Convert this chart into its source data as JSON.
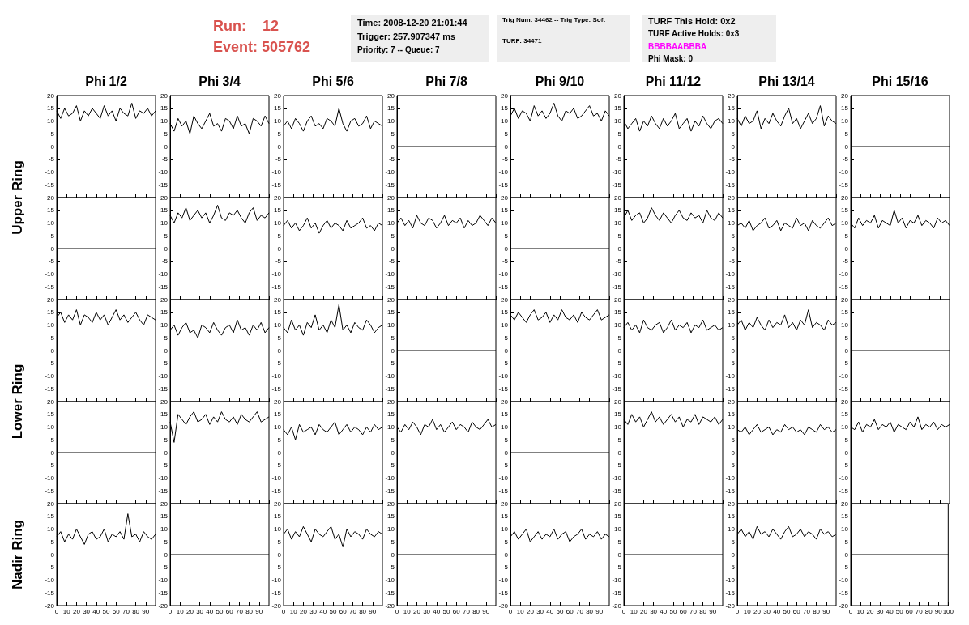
{
  "chart_data": [
    {
      "type": "line",
      "title": "Phi 1/2",
      "ylabel": "Upper Ring",
      "annotations": [
        "Run:    12",
        "Event: 505762",
        "Time: 2008-12-20 21:01:44",
        "Trigger: 257.907347 ms",
        "Priority: 7 -- Queue: 7",
        "Trig Num: 34462 -- Trig Type: Soft",
        "TURF: 34471",
        "TURF This Hold: 0x2",
        "TURF Active Holds: 0x3",
        "BBBBAABBBA",
        "Phi Mask: 0"
      ],
      "color": "#000000",
      "marker": "none",
      "tick_labels": "y",
      "xlim": [
        0,
        100
      ],
      "ylim": [
        -20,
        20
      ],
      "xticks": [
        0,
        10,
        20,
        30,
        40,
        50,
        60,
        70,
        80,
        90,
        100
      ],
      "yticks": [
        -15,
        -10,
        -5,
        0,
        5,
        10,
        15,
        20
      ],
      "x": [
        0,
        4,
        8,
        12,
        16,
        20,
        24,
        28,
        32,
        36,
        40,
        44,
        48,
        52,
        56,
        60,
        64,
        68,
        72,
        76,
        80,
        84,
        88,
        92,
        96,
        100
      ],
      "values": [
        14,
        11,
        15,
        12,
        13,
        16,
        10,
        14,
        12,
        15,
        13,
        11,
        16,
        12,
        14,
        10,
        15,
        13,
        12,
        17,
        11,
        14,
        13,
        15,
        12,
        14
      ]
    },
    {
      "type": "line",
      "title": "Phi 3/4",
      "color": "#000000",
      "marker": "none",
      "tick_labels": "y",
      "xlim": [
        0,
        100
      ],
      "ylim": [
        -20,
        20
      ],
      "xticks": [
        0,
        10,
        20,
        30,
        40,
        50,
        60,
        70,
        80,
        90,
        100
      ],
      "yticks": [
        -15,
        -10,
        -5,
        0,
        5,
        10,
        15,
        20
      ],
      "x": [
        0,
        4,
        8,
        12,
        16,
        20,
        24,
        28,
        32,
        36,
        40,
        44,
        48,
        52,
        56,
        60,
        64,
        68,
        72,
        76,
        80,
        84,
        88,
        92,
        96,
        100
      ],
      "values": [
        9,
        6,
        11,
        8,
        10,
        5,
        12,
        9,
        7,
        10,
        13,
        8,
        9,
        6,
        11,
        10,
        7,
        12,
        8,
        9,
        5,
        11,
        10,
        8,
        12,
        9
      ]
    },
    {
      "type": "line",
      "title": "Phi 5/6",
      "color": "#000000",
      "marker": "none",
      "tick_labels": "y",
      "xlim": [
        0,
        100
      ],
      "ylim": [
        -20,
        20
      ],
      "xticks": [
        0,
        10,
        20,
        30,
        40,
        50,
        60,
        70,
        80,
        90,
        100
      ],
      "yticks": [
        -15,
        -10,
        -5,
        0,
        5,
        10,
        15,
        20
      ],
      "x": [
        0,
        4,
        8,
        12,
        16,
        20,
        24,
        28,
        32,
        36,
        40,
        44,
        48,
        52,
        56,
        60,
        64,
        68,
        72,
        76,
        80,
        84,
        88,
        92,
        96,
        100
      ],
      "values": [
        8,
        10,
        7,
        11,
        9,
        6,
        10,
        12,
        8,
        9,
        7,
        11,
        10,
        8,
        15,
        9,
        6,
        10,
        11,
        8,
        9,
        12,
        7,
        10,
        9,
        8
      ]
    },
    {
      "type": "line",
      "title": "Phi 7/8",
      "color": "#000000",
      "marker": "none",
      "tick_labels": "y",
      "xlim": [
        0,
        100
      ],
      "ylim": [
        -20,
        20
      ],
      "xticks": [
        0,
        10,
        20,
        30,
        40,
        50,
        60,
        70,
        80,
        90,
        100
      ],
      "yticks": [
        -15,
        -10,
        -5,
        0,
        5,
        10,
        15,
        20
      ],
      "x": [
        0,
        100
      ],
      "values": [
        0,
        0
      ]
    },
    {
      "type": "line",
      "title": "Phi 9/10",
      "color": "#000000",
      "marker": "none",
      "tick_labels": "y",
      "xlim": [
        0,
        100
      ],
      "ylim": [
        -20,
        20
      ],
      "xticks": [
        0,
        10,
        20,
        30,
        40,
        50,
        60,
        70,
        80,
        90,
        100
      ],
      "yticks": [
        -15,
        -10,
        -5,
        0,
        5,
        10,
        15,
        20
      ],
      "x": [
        0,
        4,
        8,
        12,
        16,
        20,
        24,
        28,
        32,
        36,
        40,
        44,
        48,
        52,
        56,
        60,
        64,
        68,
        72,
        76,
        80,
        84,
        88,
        92,
        96,
        100
      ],
      "values": [
        12,
        15,
        11,
        14,
        13,
        10,
        16,
        12,
        14,
        11,
        13,
        17,
        12,
        10,
        14,
        13,
        15,
        11,
        12,
        14,
        16,
        12,
        13,
        10,
        14,
        12
      ]
    },
    {
      "type": "line",
      "title": "Phi 11/12",
      "color": "#000000",
      "marker": "none",
      "tick_labels": "y",
      "xlim": [
        0,
        100
      ],
      "ylim": [
        -20,
        20
      ],
      "xticks": [
        0,
        10,
        20,
        30,
        40,
        50,
        60,
        70,
        80,
        90,
        100
      ],
      "yticks": [
        -15,
        -10,
        -5,
        0,
        5,
        10,
        15,
        20
      ],
      "x": [
        0,
        4,
        8,
        12,
        16,
        20,
        24,
        28,
        32,
        36,
        40,
        44,
        48,
        52,
        56,
        60,
        64,
        68,
        72,
        76,
        80,
        84,
        88,
        92,
        96,
        100
      ],
      "values": [
        10,
        7,
        9,
        11,
        6,
        10,
        8,
        12,
        9,
        7,
        11,
        8,
        10,
        13,
        7,
        9,
        11,
        6,
        10,
        8,
        12,
        9,
        7,
        10,
        11,
        9
      ]
    },
    {
      "type": "line",
      "title": "Phi 13/14",
      "color": "#000000",
      "marker": "none",
      "tick_labels": "y",
      "xlim": [
        0,
        100
      ],
      "ylim": [
        -20,
        20
      ],
      "xticks": [
        0,
        10,
        20,
        30,
        40,
        50,
        60,
        70,
        80,
        90,
        100
      ],
      "yticks": [
        -15,
        -10,
        -5,
        0,
        5,
        10,
        15,
        20
      ],
      "x": [
        0,
        4,
        8,
        12,
        16,
        20,
        24,
        28,
        32,
        36,
        40,
        44,
        48,
        52,
        56,
        60,
        64,
        68,
        72,
        76,
        80,
        84,
        88,
        92,
        96,
        100
      ],
      "values": [
        11,
        8,
        12,
        9,
        10,
        14,
        7,
        11,
        9,
        13,
        10,
        8,
        12,
        15,
        9,
        11,
        7,
        10,
        13,
        9,
        11,
        16,
        8,
        12,
        10,
        9
      ]
    },
    {
      "type": "line",
      "title": "Phi 15/16",
      "color": "#000000",
      "marker": "none",
      "tick_labels": "y",
      "xlim": [
        0,
        100
      ],
      "ylim": [
        -20,
        20
      ],
      "xticks": [
        0,
        10,
        20,
        30,
        40,
        50,
        60,
        70,
        80,
        90,
        100
      ],
      "yticks": [
        -15,
        -10,
        -5,
        0,
        5,
        10,
        15,
        20
      ],
      "x": [
        0,
        100
      ],
      "values": [
        0,
        0
      ]
    },
    {
      "type": "line",
      "color": "#000000",
      "marker": "none",
      "tick_labels": "y",
      "xlim": [
        0,
        100
      ],
      "ylim": [
        -20,
        20
      ],
      "xticks": [
        0,
        10,
        20,
        30,
        40,
        50,
        60,
        70,
        80,
        90,
        100
      ],
      "yticks": [
        -15,
        -10,
        -5,
        0,
        5,
        10,
        15,
        20
      ],
      "x": [
        0,
        100
      ],
      "values": [
        0,
        0
      ]
    },
    {
      "type": "line",
      "color": "#000000",
      "marker": "none",
      "tick_labels": "y",
      "xlim": [
        0,
        100
      ],
      "ylim": [
        -20,
        20
      ],
      "xticks": [
        0,
        10,
        20,
        30,
        40,
        50,
        60,
        70,
        80,
        90,
        100
      ],
      "yticks": [
        -15,
        -10,
        -5,
        0,
        5,
        10,
        15,
        20
      ],
      "x": [
        0,
        4,
        8,
        12,
        16,
        20,
        24,
        28,
        32,
        36,
        40,
        44,
        48,
        52,
        56,
        60,
        64,
        68,
        72,
        76,
        80,
        84,
        88,
        92,
        96,
        100
      ],
      "values": [
        13,
        10,
        14,
        12,
        16,
        11,
        13,
        15,
        12,
        14,
        10,
        13,
        17,
        12,
        11,
        14,
        13,
        15,
        12,
        10,
        14,
        16,
        11,
        13,
        12,
        14
      ]
    },
    {
      "type": "line",
      "color": "#000000",
      "marker": "none",
      "tick_labels": "y",
      "xlim": [
        0,
        100
      ],
      "ylim": [
        -20,
        20
      ],
      "xticks": [
        0,
        10,
        20,
        30,
        40,
        50,
        60,
        70,
        80,
        90,
        100
      ],
      "yticks": [
        -15,
        -10,
        -5,
        0,
        5,
        10,
        15,
        20
      ],
      "x": [
        0,
        4,
        8,
        12,
        16,
        20,
        24,
        28,
        32,
        36,
        40,
        44,
        48,
        52,
        56,
        60,
        64,
        68,
        72,
        76,
        80,
        84,
        88,
        92,
        96,
        100
      ],
      "values": [
        9,
        11,
        8,
        10,
        7,
        9,
        12,
        8,
        10,
        6,
        9,
        11,
        8,
        10,
        9,
        7,
        11,
        8,
        9,
        10,
        12,
        8,
        9,
        7,
        10,
        9
      ]
    },
    {
      "type": "line",
      "color": "#000000",
      "marker": "none",
      "tick_labels": "y",
      "xlim": [
        0,
        100
      ],
      "ylim": [
        -20,
        20
      ],
      "xticks": [
        0,
        10,
        20,
        30,
        40,
        50,
        60,
        70,
        80,
        90,
        100
      ],
      "yticks": [
        -15,
        -10,
        -5,
        0,
        5,
        10,
        15,
        20
      ],
      "x": [
        0,
        4,
        8,
        12,
        16,
        20,
        24,
        28,
        32,
        36,
        40,
        44,
        48,
        52,
        56,
        60,
        64,
        68,
        72,
        76,
        80,
        84,
        88,
        92,
        96,
        100
      ],
      "values": [
        10,
        12,
        9,
        11,
        8,
        13,
        10,
        9,
        12,
        11,
        8,
        10,
        13,
        9,
        11,
        10,
        12,
        8,
        11,
        9,
        10,
        13,
        11,
        9,
        12,
        10
      ]
    },
    {
      "type": "line",
      "color": "#000000",
      "marker": "none",
      "tick_labels": "y",
      "xlim": [
        0,
        100
      ],
      "ylim": [
        -20,
        20
      ],
      "xticks": [
        0,
        10,
        20,
        30,
        40,
        50,
        60,
        70,
        80,
        90,
        100
      ],
      "yticks": [
        -15,
        -10,
        -5,
        0,
        5,
        10,
        15,
        20
      ],
      "x": [
        0,
        100
      ],
      "values": [
        0,
        0
      ]
    },
    {
      "type": "line",
      "color": "#000000",
      "marker": "none",
      "tick_labels": "y",
      "xlim": [
        0,
        100
      ],
      "ylim": [
        -20,
        20
      ],
      "xticks": [
        0,
        10,
        20,
        30,
        40,
        50,
        60,
        70,
        80,
        90,
        100
      ],
      "yticks": [
        -15,
        -10,
        -5,
        0,
        5,
        10,
        15,
        20
      ],
      "x": [
        0,
        4,
        8,
        12,
        16,
        20,
        24,
        28,
        32,
        36,
        40,
        44,
        48,
        52,
        56,
        60,
        64,
        68,
        72,
        76,
        80,
        84,
        88,
        92,
        96,
        100
      ],
      "values": [
        12,
        15,
        11,
        13,
        14,
        10,
        12,
        16,
        13,
        11,
        14,
        12,
        10,
        13,
        15,
        12,
        11,
        14,
        12,
        13,
        10,
        15,
        12,
        11,
        14,
        12
      ]
    },
    {
      "type": "line",
      "color": "#000000",
      "marker": "none",
      "tick_labels": "y",
      "xlim": [
        0,
        100
      ],
      "ylim": [
        -20,
        20
      ],
      "xticks": [
        0,
        10,
        20,
        30,
        40,
        50,
        60,
        70,
        80,
        90,
        100
      ],
      "yticks": [
        -15,
        -10,
        -5,
        0,
        5,
        10,
        15,
        20
      ],
      "x": [
        0,
        4,
        8,
        12,
        16,
        20,
        24,
        28,
        32,
        36,
        40,
        44,
        48,
        52,
        56,
        60,
        64,
        68,
        72,
        76,
        80,
        84,
        88,
        92,
        96,
        100
      ],
      "values": [
        9,
        10,
        8,
        11,
        7,
        9,
        10,
        12,
        8,
        9,
        11,
        7,
        10,
        9,
        8,
        12,
        9,
        10,
        7,
        11,
        9,
        8,
        10,
        12,
        9,
        10
      ]
    },
    {
      "type": "line",
      "color": "#000000",
      "marker": "none",
      "tick_labels": "y",
      "xlim": [
        0,
        100
      ],
      "ylim": [
        -20,
        20
      ],
      "xticks": [
        0,
        10,
        20,
        30,
        40,
        50,
        60,
        70,
        80,
        90,
        100
      ],
      "yticks": [
        -15,
        -10,
        -5,
        0,
        5,
        10,
        15,
        20
      ],
      "x": [
        0,
        4,
        8,
        12,
        16,
        20,
        24,
        28,
        32,
        36,
        40,
        44,
        48,
        52,
        56,
        60,
        64,
        68,
        72,
        76,
        80,
        84,
        88,
        92,
        96,
        100
      ],
      "values": [
        10,
        8,
        12,
        9,
        11,
        10,
        13,
        8,
        11,
        10,
        9,
        15,
        10,
        12,
        8,
        11,
        10,
        13,
        9,
        11,
        10,
        8,
        12,
        10,
        11,
        9
      ]
    },
    {
      "type": "line",
      "ylabel": "Lower Ring",
      "color": "#000000",
      "marker": "none",
      "tick_labels": "y",
      "xlim": [
        0,
        100
      ],
      "ylim": [
        -20,
        20
      ],
      "xticks": [
        0,
        10,
        20,
        30,
        40,
        50,
        60,
        70,
        80,
        90,
        100
      ],
      "yticks": [
        -15,
        -10,
        -5,
        0,
        5,
        10,
        15,
        20
      ],
      "x": [
        0,
        4,
        8,
        12,
        16,
        20,
        24,
        28,
        32,
        36,
        40,
        44,
        48,
        52,
        56,
        60,
        64,
        68,
        72,
        76,
        80,
        84,
        88,
        92,
        96,
        100
      ],
      "values": [
        13,
        15,
        11,
        14,
        12,
        16,
        10,
        14,
        13,
        11,
        15,
        12,
        14,
        10,
        13,
        16,
        12,
        14,
        11,
        13,
        15,
        12,
        10,
        14,
        13,
        12
      ]
    },
    {
      "type": "line",
      "color": "#000000",
      "marker": "none",
      "tick_labels": "y",
      "xlim": [
        0,
        100
      ],
      "ylim": [
        -20,
        20
      ],
      "xticks": [
        0,
        10,
        20,
        30,
        40,
        50,
        60,
        70,
        80,
        90,
        100
      ],
      "yticks": [
        -15,
        -10,
        -5,
        0,
        5,
        10,
        15,
        20
      ],
      "x": [
        0,
        4,
        8,
        12,
        16,
        20,
        24,
        28,
        32,
        36,
        40,
        44,
        48,
        52,
        56,
        60,
        64,
        68,
        72,
        76,
        80,
        84,
        88,
        92,
        96,
        100
      ],
      "values": [
        8,
        10,
        6,
        9,
        11,
        7,
        8,
        5,
        10,
        9,
        7,
        11,
        8,
        6,
        9,
        10,
        7,
        12,
        8,
        9,
        6,
        10,
        8,
        11,
        7,
        9
      ]
    },
    {
      "type": "line",
      "color": "#000000",
      "marker": "none",
      "tick_labels": "y",
      "xlim": [
        0,
        100
      ],
      "ylim": [
        -20,
        20
      ],
      "xticks": [
        0,
        10,
        20,
        30,
        40,
        50,
        60,
        70,
        80,
        90,
        100
      ],
      "yticks": [
        -15,
        -10,
        -5,
        0,
        5,
        10,
        15,
        20
      ],
      "x": [
        0,
        4,
        8,
        12,
        16,
        20,
        24,
        28,
        32,
        36,
        40,
        44,
        48,
        52,
        56,
        60,
        64,
        68,
        72,
        76,
        80,
        84,
        88,
        92,
        96,
        100
      ],
      "values": [
        9,
        7,
        12,
        8,
        10,
        6,
        11,
        9,
        14,
        8,
        10,
        7,
        12,
        9,
        18,
        8,
        10,
        7,
        11,
        9,
        8,
        12,
        10,
        7,
        9,
        10
      ]
    },
    {
      "type": "line",
      "color": "#000000",
      "marker": "none",
      "tick_labels": "y",
      "xlim": [
        0,
        100
      ],
      "ylim": [
        -20,
        20
      ],
      "xticks": [
        0,
        10,
        20,
        30,
        40,
        50,
        60,
        70,
        80,
        90,
        100
      ],
      "yticks": [
        -15,
        -10,
        -5,
        0,
        5,
        10,
        15,
        20
      ],
      "x": [
        0,
        100
      ],
      "values": [
        0,
        0
      ]
    },
    {
      "type": "line",
      "color": "#000000",
      "marker": "none",
      "tick_labels": "y",
      "xlim": [
        0,
        100
      ],
      "ylim": [
        -20,
        20
      ],
      "xticks": [
        0,
        10,
        20,
        30,
        40,
        50,
        60,
        70,
        80,
        90,
        100
      ],
      "yticks": [
        -15,
        -10,
        -5,
        0,
        5,
        10,
        15,
        20
      ],
      "x": [
        0,
        4,
        8,
        12,
        16,
        20,
        24,
        28,
        32,
        36,
        40,
        44,
        48,
        52,
        56,
        60,
        64,
        68,
        72,
        76,
        80,
        84,
        88,
        92,
        96,
        100
      ],
      "values": [
        14,
        12,
        15,
        13,
        11,
        14,
        16,
        12,
        13,
        15,
        11,
        14,
        12,
        16,
        13,
        12,
        14,
        11,
        15,
        13,
        12,
        14,
        16,
        12,
        13,
        14
      ]
    },
    {
      "type": "line",
      "color": "#000000",
      "marker": "none",
      "tick_labels": "y",
      "xlim": [
        0,
        100
      ],
      "ylim": [
        -20,
        20
      ],
      "xticks": [
        0,
        10,
        20,
        30,
        40,
        50,
        60,
        70,
        80,
        90,
        100
      ],
      "yticks": [
        -15,
        -10,
        -5,
        0,
        5,
        10,
        15,
        20
      ],
      "x": [
        0,
        4,
        8,
        12,
        16,
        20,
        24,
        28,
        32,
        36,
        40,
        44,
        48,
        52,
        56,
        60,
        64,
        68,
        72,
        76,
        80,
        84,
        88,
        92,
        96,
        100
      ],
      "values": [
        9,
        11,
        8,
        10,
        7,
        12,
        9,
        8,
        10,
        11,
        7,
        9,
        12,
        8,
        10,
        9,
        11,
        7,
        10,
        9,
        12,
        8,
        9,
        10,
        8,
        9
      ]
    },
    {
      "type": "line",
      "color": "#000000",
      "marker": "none",
      "tick_labels": "y",
      "xlim": [
        0,
        100
      ],
      "ylim": [
        -20,
        20
      ],
      "xticks": [
        0,
        10,
        20,
        30,
        40,
        50,
        60,
        70,
        80,
        90,
        100
      ],
      "yticks": [
        -15,
        -10,
        -5,
        0,
        5,
        10,
        15,
        20
      ],
      "x": [
        0,
        4,
        8,
        12,
        16,
        20,
        24,
        28,
        32,
        36,
        40,
        44,
        48,
        52,
        56,
        60,
        64,
        68,
        72,
        76,
        80,
        84,
        88,
        92,
        96,
        100
      ],
      "values": [
        10,
        12,
        8,
        11,
        9,
        13,
        10,
        8,
        12,
        9,
        11,
        10,
        14,
        9,
        11,
        8,
        12,
        10,
        16,
        9,
        11,
        10,
        8,
        12,
        10,
        11
      ]
    },
    {
      "type": "line",
      "color": "#000000",
      "marker": "none",
      "tick_labels": "y",
      "xlim": [
        0,
        100
      ],
      "ylim": [
        -20,
        20
      ],
      "xticks": [
        0,
        10,
        20,
        30,
        40,
        50,
        60,
        70,
        80,
        90,
        100
      ],
      "yticks": [
        -15,
        -10,
        -5,
        0,
        5,
        10,
        15,
        20
      ],
      "x": [
        0,
        100
      ],
      "values": [
        0,
        0
      ]
    },
    {
      "type": "line",
      "color": "#000000",
      "marker": "none",
      "tick_labels": "y",
      "xlim": [
        0,
        100
      ],
      "ylim": [
        -20,
        20
      ],
      "xticks": [
        0,
        10,
        20,
        30,
        40,
        50,
        60,
        70,
        80,
        90,
        100
      ],
      "yticks": [
        -15,
        -10,
        -5,
        0,
        5,
        10,
        15,
        20
      ],
      "x": [
        0,
        100
      ],
      "values": [
        0,
        0
      ]
    },
    {
      "type": "line",
      "color": "#000000",
      "marker": "none",
      "tick_labels": "y",
      "xlim": [
        0,
        100
      ],
      "ylim": [
        -20,
        20
      ],
      "xticks": [
        0,
        10,
        20,
        30,
        40,
        50,
        60,
        70,
        80,
        90,
        100
      ],
      "yticks": [
        -15,
        -10,
        -5,
        0,
        5,
        10,
        15,
        20
      ],
      "x": [
        0,
        4,
        8,
        12,
        16,
        20,
        24,
        28,
        32,
        36,
        40,
        44,
        48,
        52,
        56,
        60,
        64,
        68,
        72,
        76,
        80,
        84,
        88,
        92,
        96,
        100
      ],
      "values": [
        12,
        4,
        15,
        13,
        11,
        14,
        16,
        12,
        13,
        15,
        11,
        14,
        12,
        16,
        13,
        12,
        14,
        11,
        15,
        13,
        12,
        14,
        16,
        12,
        13,
        14
      ]
    },
    {
      "type": "line",
      "color": "#000000",
      "marker": "none",
      "tick_labels": "y",
      "xlim": [
        0,
        100
      ],
      "ylim": [
        -20,
        20
      ],
      "xticks": [
        0,
        10,
        20,
        30,
        40,
        50,
        60,
        70,
        80,
        90,
        100
      ],
      "yticks": [
        -15,
        -10,
        -5,
        0,
        5,
        10,
        15,
        20
      ],
      "x": [
        0,
        4,
        8,
        12,
        16,
        20,
        24,
        28,
        32,
        36,
        40,
        44,
        48,
        52,
        56,
        60,
        64,
        68,
        72,
        76,
        80,
        84,
        88,
        92,
        96,
        100
      ],
      "values": [
        9,
        7,
        10,
        5,
        11,
        8,
        9,
        10,
        7,
        11,
        9,
        8,
        10,
        12,
        7,
        9,
        11,
        8,
        10,
        9,
        7,
        10,
        8,
        11,
        9,
        10
      ]
    },
    {
      "type": "line",
      "color": "#000000",
      "marker": "none",
      "tick_labels": "y",
      "xlim": [
        0,
        100
      ],
      "ylim": [
        -20,
        20
      ],
      "xticks": [
        0,
        10,
        20,
        30,
        40,
        50,
        60,
        70,
        80,
        90,
        100
      ],
      "yticks": [
        -15,
        -10,
        -5,
        0,
        5,
        10,
        15,
        20
      ],
      "x": [
        0,
        4,
        8,
        12,
        16,
        20,
        24,
        28,
        32,
        36,
        40,
        44,
        48,
        52,
        56,
        60,
        64,
        68,
        72,
        76,
        80,
        84,
        88,
        92,
        96,
        100
      ],
      "values": [
        10,
        8,
        11,
        9,
        12,
        10,
        7,
        11,
        10,
        13,
        9,
        11,
        8,
        10,
        12,
        9,
        11,
        10,
        8,
        12,
        10,
        9,
        11,
        13,
        10,
        11
      ]
    },
    {
      "type": "line",
      "color": "#000000",
      "marker": "none",
      "tick_labels": "y",
      "xlim": [
        0,
        100
      ],
      "ylim": [
        -20,
        20
      ],
      "xticks": [
        0,
        10,
        20,
        30,
        40,
        50,
        60,
        70,
        80,
        90,
        100
      ],
      "yticks": [
        -15,
        -10,
        -5,
        0,
        5,
        10,
        15,
        20
      ],
      "x": [
        0,
        100
      ],
      "values": [
        0,
        0
      ]
    },
    {
      "type": "line",
      "color": "#000000",
      "marker": "none",
      "tick_labels": "y",
      "xlim": [
        0,
        100
      ],
      "ylim": [
        -20,
        20
      ],
      "xticks": [
        0,
        10,
        20,
        30,
        40,
        50,
        60,
        70,
        80,
        90,
        100
      ],
      "yticks": [
        -15,
        -10,
        -5,
        0,
        5,
        10,
        15,
        20
      ],
      "x": [
        0,
        4,
        8,
        12,
        16,
        20,
        24,
        28,
        32,
        36,
        40,
        44,
        48,
        52,
        56,
        60,
        64,
        68,
        72,
        76,
        80,
        84,
        88,
        92,
        96,
        100
      ],
      "values": [
        13,
        11,
        15,
        12,
        14,
        10,
        13,
        16,
        12,
        14,
        11,
        13,
        15,
        12,
        14,
        10,
        13,
        12,
        15,
        11,
        14,
        13,
        12,
        14,
        11,
        13
      ]
    },
    {
      "type": "line",
      "color": "#000000",
      "marker": "none",
      "tick_labels": "y",
      "xlim": [
        0,
        100
      ],
      "ylim": [
        -20,
        20
      ],
      "xticks": [
        0,
        10,
        20,
        30,
        40,
        50,
        60,
        70,
        80,
        90,
        100
      ],
      "yticks": [
        -15,
        -10,
        -5,
        0,
        5,
        10,
        15,
        20
      ],
      "x": [
        0,
        4,
        8,
        12,
        16,
        20,
        24,
        28,
        32,
        36,
        40,
        44,
        48,
        52,
        56,
        60,
        64,
        68,
        72,
        76,
        80,
        84,
        88,
        92,
        96,
        100
      ],
      "values": [
        9,
        8,
        10,
        7,
        9,
        11,
        8,
        9,
        10,
        7,
        9,
        8,
        11,
        9,
        10,
        8,
        9,
        7,
        10,
        9,
        8,
        11,
        9,
        10,
        8,
        9
      ]
    },
    {
      "type": "line",
      "color": "#000000",
      "marker": "none",
      "tick_labels": "y",
      "xlim": [
        0,
        100
      ],
      "ylim": [
        -20,
        20
      ],
      "xticks": [
        0,
        10,
        20,
        30,
        40,
        50,
        60,
        70,
        80,
        90,
        100
      ],
      "yticks": [
        -15,
        -10,
        -5,
        0,
        5,
        10,
        15,
        20
      ],
      "x": [
        0,
        4,
        8,
        12,
        16,
        20,
        24,
        28,
        32,
        36,
        40,
        44,
        48,
        52,
        56,
        60,
        64,
        68,
        72,
        76,
        80,
        84,
        88,
        92,
        96,
        100
      ],
      "values": [
        10,
        9,
        12,
        8,
        11,
        10,
        13,
        9,
        11,
        10,
        12,
        8,
        11,
        10,
        9,
        12,
        10,
        14,
        9,
        11,
        10,
        12,
        9,
        11,
        10,
        11
      ]
    },
    {
      "type": "line",
      "ylabel": "Nadir Ring",
      "color": "#000000",
      "marker": "none",
      "xlim": [
        0,
        100
      ],
      "ylim": [
        -20,
        20
      ],
      "xticks": [
        0,
        10,
        20,
        30,
        40,
        50,
        60,
        70,
        80,
        90
      ],
      "yticks": [
        -20,
        -15,
        -10,
        -5,
        0,
        5,
        10,
        15,
        20
      ],
      "x": [
        0,
        4,
        8,
        12,
        16,
        20,
        24,
        28,
        32,
        36,
        40,
        44,
        48,
        52,
        56,
        60,
        64,
        68,
        72,
        76,
        80,
        84,
        88,
        92,
        96,
        100
      ],
      "values": [
        7,
        9,
        5,
        8,
        6,
        10,
        7,
        4,
        8,
        9,
        6,
        7,
        10,
        5,
        8,
        7,
        9,
        6,
        16,
        7,
        8,
        5,
        9,
        7,
        6,
        8
      ]
    },
    {
      "type": "line",
      "color": "#000000",
      "marker": "none",
      "xlim": [
        0,
        100
      ],
      "ylim": [
        -20,
        20
      ],
      "xticks": [
        0,
        10,
        20,
        30,
        40,
        50,
        60,
        70,
        80,
        90
      ],
      "yticks": [
        -20,
        -15,
        -10,
        -5,
        0,
        5,
        10,
        15,
        20
      ],
      "x": [
        0,
        100
      ],
      "values": [
        0,
        0
      ]
    },
    {
      "type": "line",
      "color": "#000000",
      "marker": "none",
      "xlim": [
        0,
        100
      ],
      "ylim": [
        -20,
        20
      ],
      "xticks": [
        0,
        10,
        20,
        30,
        40,
        50,
        60,
        70,
        80,
        90
      ],
      "yticks": [
        -20,
        -15,
        -10,
        -5,
        0,
        5,
        10,
        15,
        20
      ],
      "x": [
        0,
        4,
        8,
        12,
        16,
        20,
        24,
        28,
        32,
        36,
        40,
        44,
        48,
        52,
        56,
        60,
        64,
        68,
        72,
        76,
        80,
        84,
        88,
        92,
        96,
        100
      ],
      "values": [
        8,
        10,
        6,
        9,
        7,
        11,
        8,
        5,
        10,
        8,
        7,
        9,
        11,
        6,
        8,
        3,
        10,
        7,
        9,
        8,
        6,
        10,
        8,
        7,
        9,
        8
      ]
    },
    {
      "type": "line",
      "color": "#000000",
      "marker": "none",
      "xlim": [
        0,
        100
      ],
      "ylim": [
        -20,
        20
      ],
      "xticks": [
        0,
        10,
        20,
        30,
        40,
        50,
        60,
        70,
        80,
        90
      ],
      "yticks": [
        -20,
        -15,
        -10,
        -5,
        0,
        5,
        10,
        15,
        20
      ],
      "x": [
        0,
        100
      ],
      "values": [
        0,
        0
      ]
    },
    {
      "type": "line",
      "color": "#000000",
      "marker": "none",
      "xlim": [
        0,
        100
      ],
      "ylim": [
        -20,
        20
      ],
      "xticks": [
        0,
        10,
        20,
        30,
        40,
        50,
        60,
        70,
        80,
        90
      ],
      "yticks": [
        -20,
        -15,
        -10,
        -5,
        0,
        5,
        10,
        15,
        20
      ],
      "x": [
        0,
        4,
        8,
        12,
        16,
        20,
        24,
        28,
        32,
        36,
        40,
        44,
        48,
        52,
        56,
        60,
        64,
        68,
        72,
        76,
        80,
        84,
        88,
        92,
        96,
        100
      ],
      "values": [
        7,
        9,
        6,
        8,
        10,
        5,
        7,
        9,
        6,
        8,
        7,
        10,
        6,
        8,
        9,
        5,
        7,
        8,
        10,
        6,
        8,
        7,
        9,
        6,
        8,
        7
      ]
    },
    {
      "type": "line",
      "color": "#000000",
      "marker": "none",
      "xlim": [
        0,
        100
      ],
      "ylim": [
        -20,
        20
      ],
      "xticks": [
        0,
        10,
        20,
        30,
        40,
        50,
        60,
        70,
        80,
        90
      ],
      "yticks": [
        -20,
        -15,
        -10,
        -5,
        0,
        5,
        10,
        15,
        20
      ],
      "x": [
        0,
        100
      ],
      "values": [
        0,
        0
      ]
    },
    {
      "type": "line",
      "color": "#000000",
      "marker": "none",
      "xlim": [
        0,
        100
      ],
      "ylim": [
        -20,
        20
      ],
      "xticks": [
        0,
        10,
        20,
        30,
        40,
        50,
        60,
        70,
        80,
        90
      ],
      "yticks": [
        -20,
        -15,
        -10,
        -5,
        0,
        5,
        10,
        15,
        20
      ],
      "x": [
        0,
        4,
        8,
        12,
        16,
        20,
        24,
        28,
        32,
        36,
        40,
        44,
        48,
        52,
        56,
        60,
        64,
        68,
        72,
        76,
        80,
        84,
        88,
        92,
        96,
        100
      ],
      "values": [
        8,
        10,
        7,
        9,
        6,
        11,
        8,
        9,
        7,
        10,
        8,
        6,
        9,
        11,
        7,
        8,
        10,
        7,
        9,
        8,
        6,
        10,
        8,
        9,
        7,
        8
      ]
    },
    {
      "type": "line",
      "color": "#000000",
      "marker": "none",
      "xlim": [
        0,
        100
      ],
      "ylim": [
        -20,
        20
      ],
      "xticks": [
        0,
        10,
        20,
        30,
        40,
        50,
        60,
        70,
        80,
        90,
        100
      ],
      "yticks": [
        -20,
        -15,
        -10,
        -5,
        0,
        5,
        10,
        15,
        20
      ],
      "x": [
        0,
        100
      ],
      "values": [
        0,
        0
      ]
    }
  ]
}
